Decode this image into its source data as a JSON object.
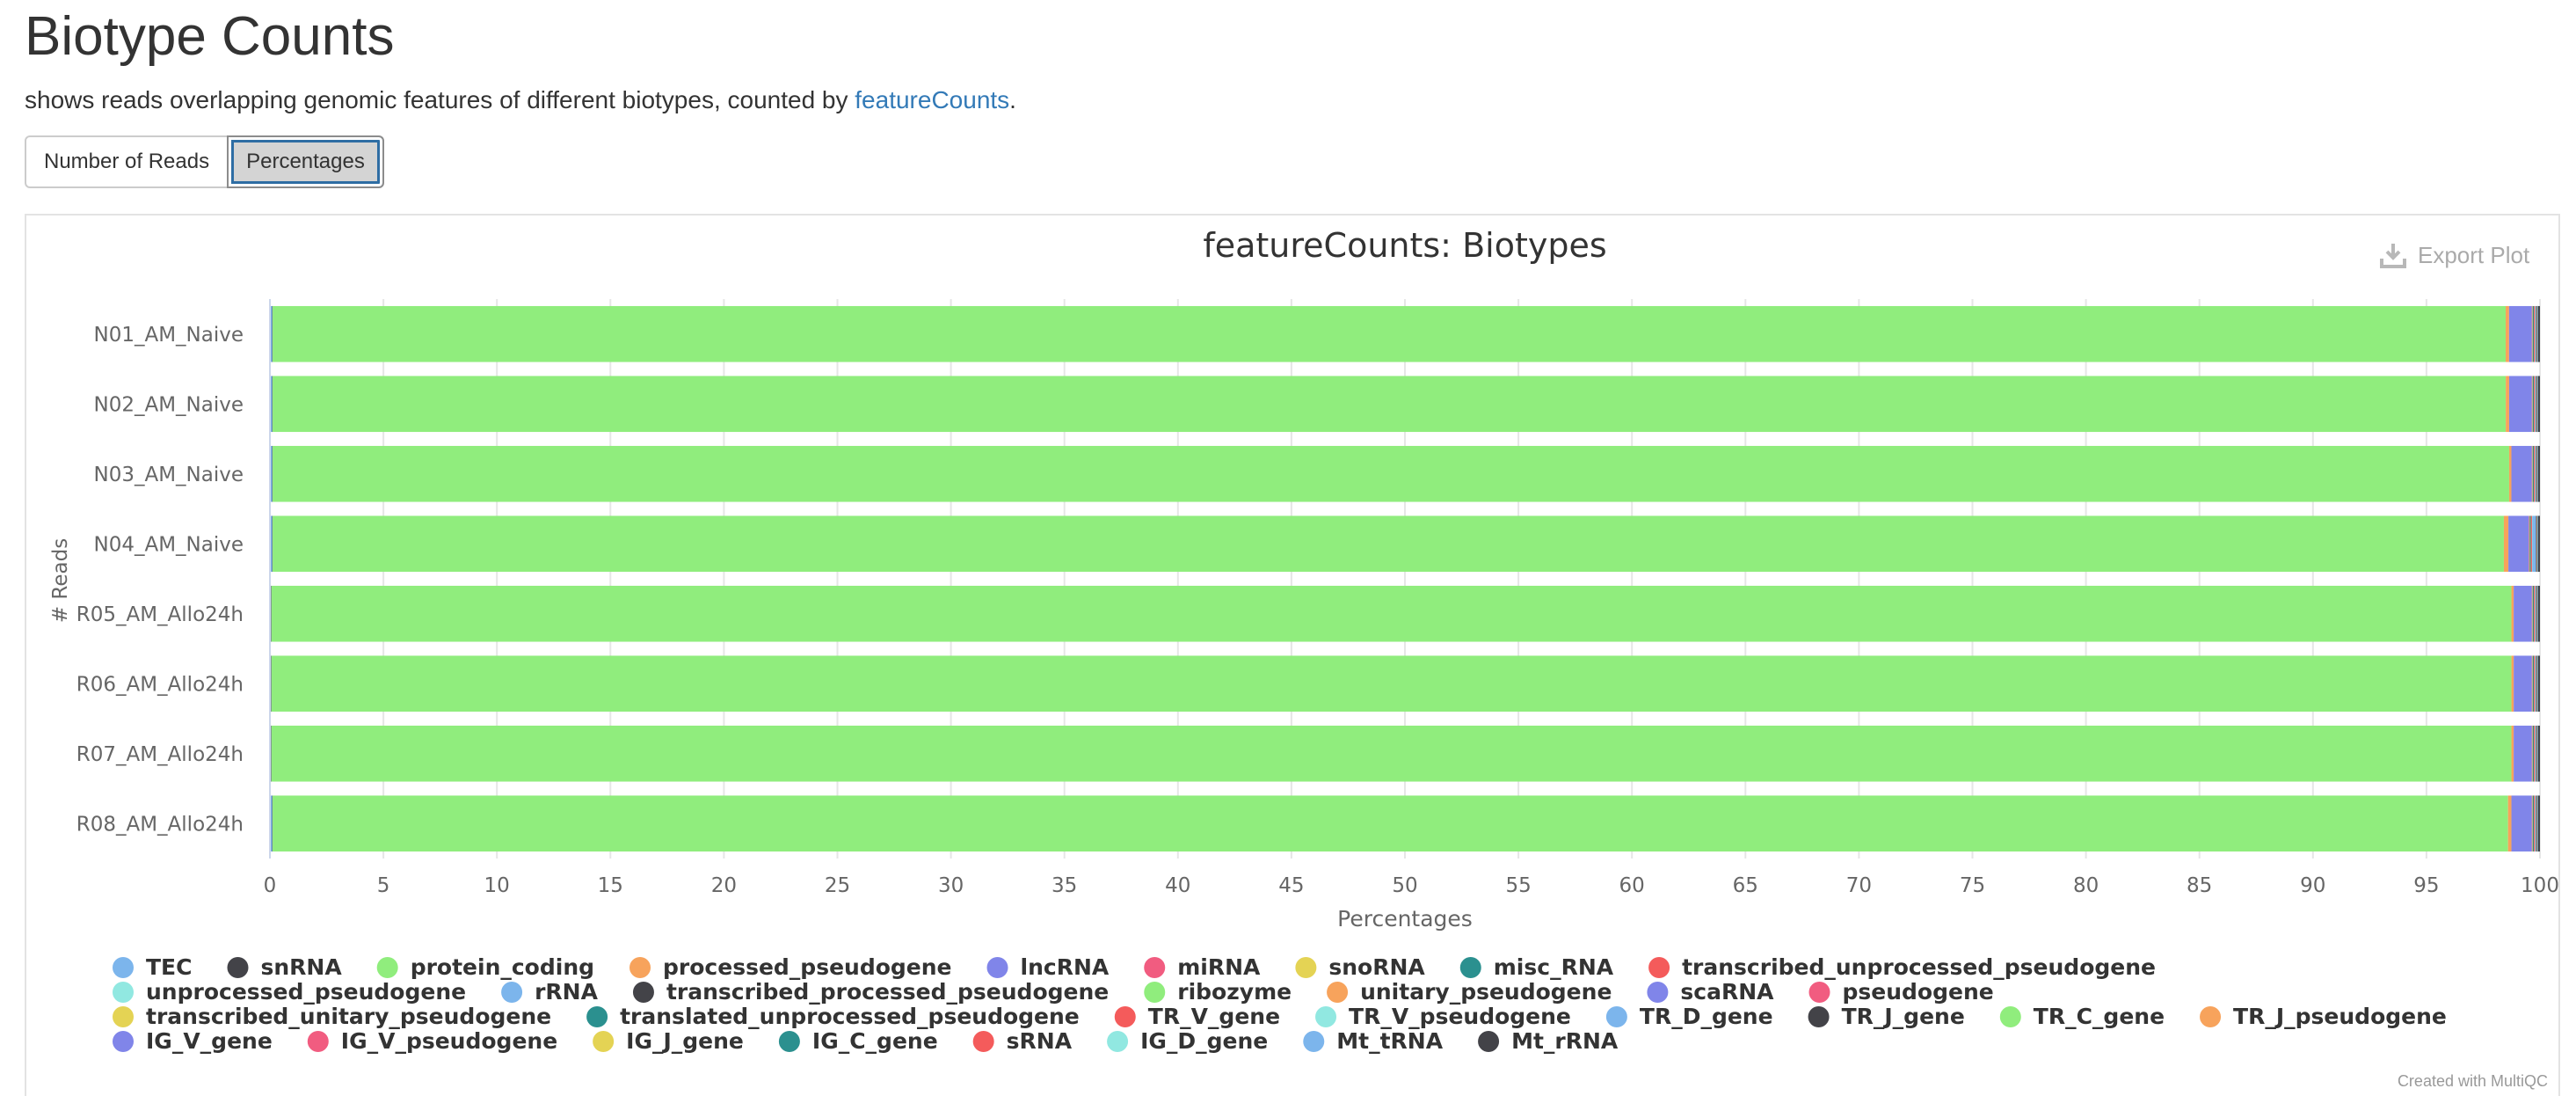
{
  "page": {
    "title": "Biotype Counts",
    "description_prefix": "shows reads overlapping genomic features of different biotypes, counted by ",
    "description_link": "featureCounts",
    "description_suffix": "."
  },
  "buttons": {
    "reads_label": "Number of Reads",
    "percent_label": "Percentages",
    "active": "Percentages"
  },
  "export_label": "Export Plot",
  "credits": "Created with MultiQC",
  "chart_data": {
    "type": "bar",
    "orientation": "horizontal",
    "stacked": true,
    "title": "featureCounts: Biotypes",
    "xlabel": "Percentages",
    "ylabel": "# Reads",
    "xlim": [
      0,
      100
    ],
    "xticks": [
      0,
      5,
      10,
      15,
      20,
      25,
      30,
      35,
      40,
      45,
      50,
      55,
      60,
      65,
      70,
      75,
      80,
      85,
      90,
      95,
      100
    ],
    "grid": true,
    "legend_position": "bottom",
    "categories": [
      "N01_AM_Naive",
      "N02_AM_Naive",
      "N03_AM_Naive",
      "N04_AM_Naive",
      "R05_AM_Allo24h",
      "R06_AM_Allo24h",
      "R07_AM_Allo24h",
      "R08_AM_Allo24h"
    ],
    "series": [
      {
        "name": "TEC",
        "color": "#7cb5ec",
        "values": [
          0.1,
          0.1,
          0.1,
          0.1,
          0.05,
          0.05,
          0.05,
          0.1
        ]
      },
      {
        "name": "snRNA",
        "color": "#434348",
        "values": [
          0.02,
          0.02,
          0.02,
          0.02,
          0.02,
          0.02,
          0.02,
          0.02
        ]
      },
      {
        "name": "protein_coding",
        "color": "#90ed7d",
        "values": [
          98.4,
          98.6,
          98.7,
          98.3,
          98.9,
          99.0,
          98.9,
          98.7
        ]
      },
      {
        "name": "processed_pseudogene",
        "color": "#f7a35c",
        "values": [
          0.15,
          0.15,
          0.1,
          0.2,
          0.1,
          0.1,
          0.1,
          0.15
        ]
      },
      {
        "name": "lncRNA",
        "color": "#8085e9",
        "values": [
          1.0,
          1.0,
          0.9,
          0.9,
          0.8,
          0.8,
          0.8,
          0.9
        ]
      },
      {
        "name": "miRNA",
        "color": "#f15c80",
        "values": [
          0.02,
          0.02,
          0.02,
          0.02,
          0.02,
          0.02,
          0.02,
          0.02
        ]
      },
      {
        "name": "snoRNA",
        "color": "#e4d354",
        "values": [
          0.02,
          0.02,
          0.02,
          0.02,
          0.02,
          0.02,
          0.02,
          0.02
        ]
      },
      {
        "name": "misc_RNA",
        "color": "#2b908f",
        "values": [
          0.05,
          0.05,
          0.05,
          0.05,
          0.05,
          0.05,
          0.05,
          0.05
        ]
      },
      {
        "name": "transcribed_unprocessed_pseudogene",
        "color": "#f45b5b",
        "values": [
          0.05,
          0.05,
          0.05,
          0.05,
          0.05,
          0.05,
          0.05,
          0.05
        ]
      },
      {
        "name": "unprocessed_pseudogene",
        "color": "#91e8e1",
        "values": [
          0.02,
          0.02,
          0.02,
          0.02,
          0.02,
          0.02,
          0.02,
          0.02
        ]
      },
      {
        "name": "rRNA",
        "color": "#7cb5ec",
        "values": [
          0.02,
          0.02,
          0.02,
          0.15,
          0.02,
          0.02,
          0.02,
          0.02
        ]
      },
      {
        "name": "transcribed_processed_pseudogene",
        "color": "#434348",
        "values": [
          0.02,
          0.02,
          0.02,
          0.02,
          0.02,
          0.02,
          0.02,
          0.02
        ]
      },
      {
        "name": "ribozyme",
        "color": "#90ed7d",
        "values": [
          0.0,
          0.0,
          0.0,
          0.0,
          0.0,
          0.0,
          0.0,
          0.0
        ]
      },
      {
        "name": "unitary_pseudogene",
        "color": "#f7a35c",
        "values": [
          0.0,
          0.0,
          0.0,
          0.0,
          0.0,
          0.0,
          0.0,
          0.0
        ]
      },
      {
        "name": "scaRNA",
        "color": "#8085e9",
        "values": [
          0.01,
          0.01,
          0.01,
          0.01,
          0.01,
          0.01,
          0.01,
          0.01
        ]
      },
      {
        "name": "pseudogene",
        "color": "#f15c80",
        "values": [
          0.0,
          0.0,
          0.0,
          0.0,
          0.0,
          0.0,
          0.0,
          0.0
        ]
      },
      {
        "name": "transcribed_unitary_pseudogene",
        "color": "#e4d354",
        "values": [
          0.01,
          0.01,
          0.01,
          0.01,
          0.01,
          0.01,
          0.01,
          0.01
        ]
      },
      {
        "name": "translated_unprocessed_pseudogene",
        "color": "#2b908f",
        "values": [
          0.0,
          0.0,
          0.0,
          0.0,
          0.0,
          0.0,
          0.0,
          0.0
        ]
      },
      {
        "name": "TR_V_gene",
        "color": "#f45b5b",
        "values": [
          0.01,
          0.01,
          0.01,
          0.01,
          0.01,
          0.01,
          0.01,
          0.01
        ]
      },
      {
        "name": "TR_V_pseudogene",
        "color": "#91e8e1",
        "values": [
          0.0,
          0.0,
          0.0,
          0.0,
          0.0,
          0.0,
          0.0,
          0.0
        ]
      },
      {
        "name": "TR_D_gene",
        "color": "#7cb5ec",
        "values": [
          0.0,
          0.0,
          0.0,
          0.0,
          0.0,
          0.0,
          0.0,
          0.0
        ]
      },
      {
        "name": "TR_J_gene",
        "color": "#434348",
        "values": [
          0.01,
          0.01,
          0.01,
          0.01,
          0.01,
          0.01,
          0.01,
          0.01
        ]
      },
      {
        "name": "TR_C_gene",
        "color": "#90ed7d",
        "values": [
          0.01,
          0.01,
          0.01,
          0.01,
          0.01,
          0.01,
          0.01,
          0.01
        ]
      },
      {
        "name": "TR_J_pseudogene",
        "color": "#f7a35c",
        "values": [
          0.0,
          0.0,
          0.0,
          0.0,
          0.0,
          0.0,
          0.0,
          0.0
        ]
      },
      {
        "name": "IG_V_gene",
        "color": "#8085e9",
        "values": [
          0.01,
          0.01,
          0.01,
          0.01,
          0.01,
          0.01,
          0.01,
          0.01
        ]
      },
      {
        "name": "IG_V_pseudogene",
        "color": "#f15c80",
        "values": [
          0.0,
          0.0,
          0.0,
          0.0,
          0.0,
          0.0,
          0.0,
          0.0
        ]
      },
      {
        "name": "IG_J_gene",
        "color": "#e4d354",
        "values": [
          0.0,
          0.0,
          0.0,
          0.0,
          0.0,
          0.0,
          0.0,
          0.0
        ]
      },
      {
        "name": "IG_C_gene",
        "color": "#2b908f",
        "values": [
          0.01,
          0.01,
          0.01,
          0.01,
          0.01,
          0.01,
          0.01,
          0.01
        ]
      },
      {
        "name": "sRNA",
        "color": "#f45b5b",
        "values": [
          0.0,
          0.0,
          0.0,
          0.0,
          0.0,
          0.0,
          0.0,
          0.0
        ]
      },
      {
        "name": "IG_D_gene",
        "color": "#91e8e1",
        "values": [
          0.0,
          0.0,
          0.0,
          0.0,
          0.0,
          0.0,
          0.0,
          0.0
        ]
      },
      {
        "name": "Mt_tRNA",
        "color": "#7cb5ec",
        "values": [
          0.01,
          0.01,
          0.01,
          0.01,
          0.01,
          0.01,
          0.01,
          0.01
        ]
      },
      {
        "name": "Mt_rRNA",
        "color": "#434348",
        "values": [
          0.08,
          0.08,
          0.08,
          0.08,
          0.08,
          0.08,
          0.08,
          0.08
        ]
      }
    ]
  }
}
